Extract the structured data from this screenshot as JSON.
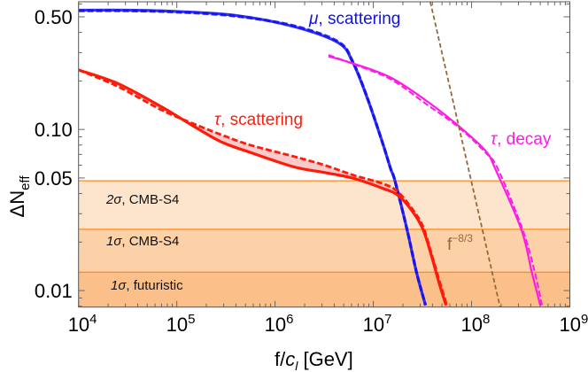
{
  "chart_data": {
    "type": "line",
    "xlabel": "f/c_l [GeV]",
    "xlabel_parts": {
      "f": "f/",
      "c": "c",
      "l": "l",
      "unit": " [GeV]"
    },
    "ylabel": "ΔN_eff",
    "ylabel_parts": {
      "main": "ΔN",
      "sub": "eff"
    },
    "xscale": "log",
    "yscale": "log",
    "xlim": [
      10000.0,
      1000000000.0
    ],
    "ylim": [
      0.0079,
      0.62
    ],
    "grid": false,
    "xticks": [
      {
        "value": 10000.0,
        "base": "10",
        "exp": "4"
      },
      {
        "value": 100000.0,
        "base": "10",
        "exp": "5"
      },
      {
        "value": 1000000.0,
        "base": "10",
        "exp": "6"
      },
      {
        "value": 10000000.0,
        "base": "10",
        "exp": "7"
      },
      {
        "value": 100000000.0,
        "base": "10",
        "exp": "8"
      },
      {
        "value": 1000000000.0,
        "base": "10",
        "exp": "9"
      }
    ],
    "yticks": [
      {
        "value": 0.5,
        "label": "0.50"
      },
      {
        "value": 0.1,
        "label": "0.10"
      },
      {
        "value": 0.05,
        "label": "0.05"
      },
      {
        "value": 0.01,
        "label": "0.01"
      }
    ],
    "bands": [
      {
        "label_sigma": "2σ",
        "label_text": ", CMB-S4",
        "upper": 0.048,
        "color": "#fde4cc"
      },
      {
        "label_sigma": "1σ",
        "label_text": ", CMB-S4",
        "upper": 0.024,
        "color": "#fdd1a8"
      },
      {
        "label_sigma": "1σ",
        "label_text": ", futuristic",
        "upper": 0.013,
        "color": "#fbc08a"
      }
    ],
    "band_line_color": "#ff8a1c",
    "series": [
      {
        "name": "μ, scattering",
        "name_sym": "μ",
        "name_text": ", scattering",
        "color": "#1010f0",
        "style": "solid",
        "x": [
          10000.0,
          32000.0,
          100000.0,
          400000.0,
          1550000.0,
          4400000.0,
          6200000.0,
          8700000.0,
          12300000.0,
          15000000.0,
          16600000.0,
          22000000.0,
          27500000.0,
          34000000.0
        ],
        "y": [
          0.55,
          0.55,
          0.54,
          0.51,
          0.435,
          0.345,
          0.26,
          0.156,
          0.084,
          0.057,
          0.048,
          0.024,
          0.013,
          0.0081
        ]
      },
      {
        "color": "#1010f0",
        "style": "dashed",
        "x": [
          10000.0,
          32000.0,
          100000.0,
          400000.0,
          1550000.0,
          4400000.0,
          6200000.0,
          8700000.0,
          12300000.0,
          15000000.0,
          16600000.0,
          22000000.0,
          27500000.0,
          34000000.0
        ],
        "y": [
          0.545,
          0.545,
          0.535,
          0.505,
          0.44,
          0.35,
          0.262,
          0.157,
          0.084,
          0.057,
          0.048,
          0.024,
          0.013,
          0.0081
        ]
      },
      {
        "name": "τ, scattering",
        "name_sym": "τ",
        "name_text": ", scattering",
        "color": "#ff1a0a",
        "style": "solid",
        "x": [
          10000.0,
          25000.0,
          70000.0,
          140000.0,
          280000.0,
          560000.0,
          1550000.0,
          3200000.0,
          6300000.0,
          12600000.0,
          17800000.0,
          25000000.0,
          32000000.0,
          39000000.0,
          47000000.0,
          55000000.0
        ],
        "y": [
          0.234,
          0.193,
          0.138,
          0.107,
          0.084,
          0.072,
          0.0586,
          0.054,
          0.0497,
          0.043,
          0.039,
          0.031,
          0.024,
          0.0165,
          0.011,
          0.0081
        ]
      },
      {
        "color": "#ff1a0a",
        "style": "dashed",
        "x": [
          10000.0,
          25000.0,
          70000.0,
          140000.0,
          280000.0,
          560000.0,
          1550000.0,
          3200000.0,
          6300000.0,
          12600000.0,
          17800000.0,
          25000000.0,
          32000000.0,
          39000000.0,
          47000000.0,
          56000000.0
        ],
        "y": [
          0.234,
          0.185,
          0.132,
          0.11,
          0.093,
          0.08,
          0.068,
          0.06,
          0.052,
          0.046,
          0.041,
          0.032,
          0.025,
          0.017,
          0.0115,
          0.0081
        ]
      },
      {
        "name": "τ, decay",
        "name_sym": "τ",
        "name_text": ", decay",
        "color": "#ff1ae6",
        "style": "solid",
        "x": [
          3500000.0,
          6200000.0,
          15000000.0,
          35000000.0,
          74000000.0,
          138000000.0,
          174000000.0,
          320000000.0,
          410000000.0,
          500000000.0
        ],
        "y": [
          0.284,
          0.257,
          0.21,
          0.15,
          0.105,
          0.074,
          0.057,
          0.024,
          0.013,
          0.0081
        ]
      },
      {
        "color": "#ff1ae6",
        "style": "dashed",
        "x": [
          3500000.0,
          6200000.0,
          15000000.0,
          35000000.0,
          74000000.0,
          138000000.0,
          185000000.0,
          330000000.0,
          440000000.0,
          520000000.0
        ],
        "y": [
          0.29,
          0.255,
          0.205,
          0.143,
          0.103,
          0.072,
          0.057,
          0.024,
          0.013,
          0.0081
        ]
      },
      {
        "name": "f^-8/3",
        "name_base": "f",
        "name_exp": "−8/3",
        "color": "#94693a",
        "style": "dashed",
        "x": [
          38000000.0,
          195000000.0
        ],
        "y": [
          0.62,
          0.0079
        ]
      }
    ],
    "shaded_between": {
      "series": [
        "τ, scattering solid",
        "τ, scattering dashed"
      ],
      "color": "#f7b9b9"
    }
  }
}
